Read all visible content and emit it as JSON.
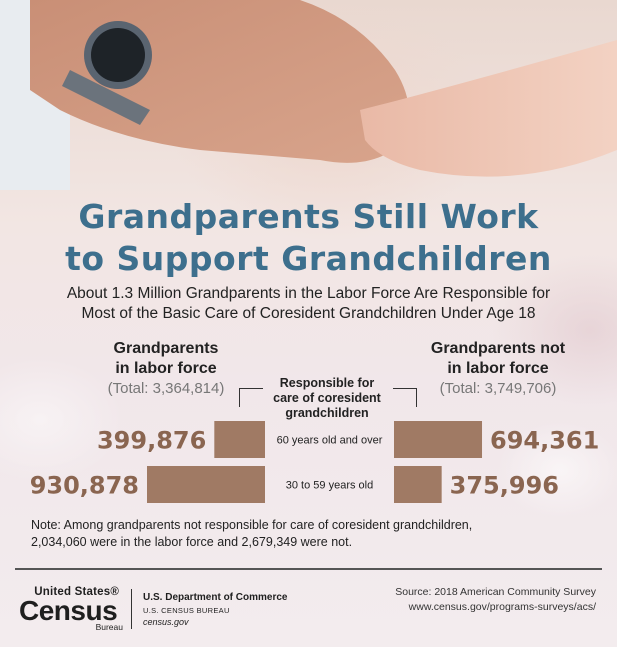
{
  "title_lines": [
    "Grandparents Still Work",
    "to Support Grandchildren"
  ],
  "subtitle_lines": [
    "About 1.3 Million Grandparents in the Labor Force Are Responsible for",
    "Most of the Basic Care of Coresident Grandchildren Under Age 18"
  ],
  "colors": {
    "title": "#3d6f8d",
    "bar": "#a07a64",
    "value": "#8a6550"
  },
  "left_group": {
    "line1": "Grandparents",
    "line2": "in labor force",
    "total": "(Total: 3,364,814)"
  },
  "right_group": {
    "line1": "Grandparents not",
    "line2": "in labor force",
    "total": "(Total: 3,749,706)"
  },
  "center_heading_lines": [
    "Responsible for",
    "care of coresident",
    "grandchildren"
  ],
  "chart_data": {
    "type": "bar",
    "orientation": "horizontal-butterfly",
    "categories": [
      "60 years old and over",
      "30 to 59 years old"
    ],
    "series": [
      {
        "name": "Grandparents in labor force",
        "values": [
          399876,
          930878
        ],
        "labels": [
          "399,876",
          "930,878"
        ]
      },
      {
        "name": "Grandparents not in labor force",
        "values": [
          694361,
          375996
        ],
        "labels": [
          "694,361",
          "375,996"
        ]
      }
    ]
  },
  "note_lines": [
    "Note: Among grandparents not responsible for care of coresident grandchildren,",
    "2,034,060 were in the labor force and 2,679,349 were not."
  ],
  "footer": {
    "logo_top": "United States®",
    "logo_main": "Census",
    "logo_bottom": "Bureau",
    "dept_line1": "U.S. Department of Commerce",
    "dept_line2": "U.S. CENSUS BUREAU",
    "dept_line3": "census.gov",
    "source_line1": "Source: 2018 American Community Survey",
    "source_line2": "www.census.gov/programs-surveys/acs/"
  }
}
